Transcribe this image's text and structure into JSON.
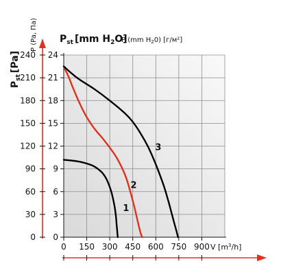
{
  "chart_data": {
    "type": "line",
    "title_main": "P",
    "title_main_sub": "st",
    "title_unit": "[mm H",
    "title_unit_sub": "2",
    "title_unit_end": "O]",
    "title_alt": "P (mm H",
    "title_alt_sub": "2",
    "title_alt_end": "0) [г/м²]",
    "left_axis_title": "P",
    "left_axis_title_sub": "st",
    "left_axis_title_end": "[Pa]",
    "top_axis_title": "P (Pa, Па)",
    "xlabel_prefix": "V [m",
    "xlabel_sup": "3",
    "xlabel_suffix": "/h]",
    "x_ticks": [
      0,
      150,
      300,
      450,
      600,
      750,
      900
    ],
    "y_ticks_mm": [
      0,
      3,
      6,
      9,
      12,
      15,
      18,
      21,
      24
    ],
    "y_ticks_pa": [
      0,
      30,
      60,
      90,
      120,
      150,
      180,
      210,
      240
    ],
    "xlim": [
      0,
      1050
    ],
    "ylim": [
      0,
      24
    ],
    "grid": true,
    "series": [
      {
        "name": "1",
        "color": "#000000",
        "x": [
          0,
          50,
          100,
          150,
          200,
          250,
          280,
          310,
          330,
          340,
          345,
          350,
          352
        ],
        "y": [
          10.2,
          10.1,
          9.95,
          9.7,
          9.3,
          8.5,
          7.6,
          6.0,
          4.2,
          2.8,
          1.6,
          0.5,
          0
        ]
      },
      {
        "name": "2",
        "color": "#e0301e",
        "x": [
          0,
          30,
          60,
          100,
          150,
          200,
          250,
          300,
          350,
          400,
          430,
          460,
          480,
          495,
          505,
          512
        ],
        "y": [
          22.5,
          21.2,
          19.7,
          17.8,
          15.8,
          14.3,
          13.1,
          11.8,
          10.3,
          8.2,
          6.3,
          4.0,
          2.3,
          1.0,
          0.3,
          0
        ]
      },
      {
        "name": "3",
        "color": "#000000",
        "x": [
          0,
          50,
          100,
          200,
          300,
          400,
          450,
          500,
          550,
          600,
          650,
          680,
          700,
          720,
          735,
          745
        ],
        "y": [
          22.5,
          21.6,
          20.8,
          19.5,
          18.0,
          16.3,
          15.2,
          13.7,
          11.9,
          9.6,
          6.9,
          4.9,
          3.4,
          1.9,
          0.8,
          0
        ]
      }
    ]
  }
}
